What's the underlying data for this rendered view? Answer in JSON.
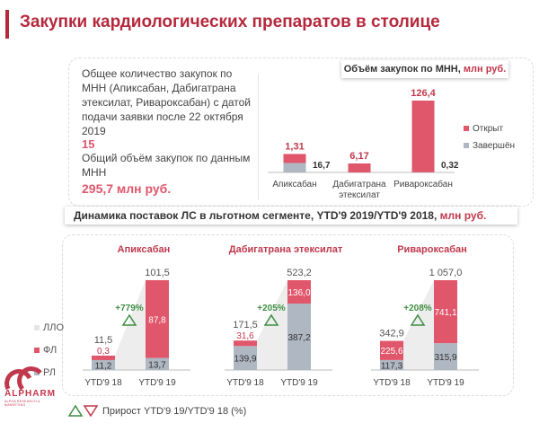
{
  "header": {
    "title": "Закупки кардиологических препаратов в столице"
  },
  "summary": {
    "text1": "Общее количество закупок по МНН (Апиксабан, Дабигатрана этексилат, Ривароксабан) с датой подачи заявки после 22 октября 2019",
    "count": "15",
    "text2": "Общий объём закупок по данным МНН",
    "total": "295,7 млн руб."
  },
  "ribbons": {
    "volume_title": "Объём закупок по МНН,",
    "volume_unit": "млн руб.",
    "dynamics_title": "Динамика поставок ЛС в льготном сегменте, YTD'9 2019/YTD'9 2018,",
    "dynamics_unit": "млн руб."
  },
  "colors": {
    "open": "#e0566b",
    "done": "#afb7c2",
    "llo": "#e6e6e6",
    "growth": "#3e8e41",
    "accent": "#b5293d"
  },
  "chart_data": [
    {
      "type": "bar",
      "stacked": true,
      "categories": [
        "Апиксабан",
        "Дабигатрана этексилат",
        "Ривароксабан"
      ],
      "series": [
        {
          "name": "Завершён",
          "values": [
            16.7,
            0,
            0.32
          ]
        },
        {
          "name": "Открыт",
          "values": [
            1.31,
            6.17,
            126.4
          ]
        }
      ],
      "data_labels": {
        "Завершён": [
          "16,7",
          "",
          "0,32"
        ],
        "Открыт": [
          "1,31",
          "6,17",
          "126,4"
        ]
      },
      "legend": [
        "Открыт",
        "Завершён"
      ],
      "legend_position": "right"
    },
    {
      "type": "bar",
      "stacked": true,
      "panels": [
        {
          "title": "Апиксабан",
          "categories": [
            "YTD'9 18",
            "YTD'9 19"
          ],
          "series": [
            {
              "name": "РЛ",
              "values": [
                11.2,
                13.7
              ]
            },
            {
              "name": "ФЛ",
              "values": [
                0.3,
                87.8
              ]
            },
            {
              "name": "ЛЛО",
              "values": [
                0,
                0
              ]
            }
          ],
          "totals": [
            11.5,
            101.5
          ],
          "labels": {
            "РЛ": [
              "11,2",
              "13,7"
            ],
            "ФЛ": [
              "0,3",
              "87,8"
            ],
            "totals": [
              "11,5",
              "101,5"
            ]
          },
          "growth": "+779%"
        },
        {
          "title": "Дабигатрана этексилат",
          "categories": [
            "YTD'9 18",
            "YTD'9 19"
          ],
          "series": [
            {
              "name": "РЛ",
              "values": [
                139.9,
                387.2
              ]
            },
            {
              "name": "ФЛ",
              "values": [
                31.6,
                136.0
              ]
            },
            {
              "name": "ЛЛО",
              "values": [
                0,
                0
              ]
            }
          ],
          "totals": [
            171.5,
            523.2
          ],
          "labels": {
            "РЛ": [
              "139,9",
              "387,2"
            ],
            "ФЛ": [
              "31,6",
              "136,0"
            ],
            "totals": [
              "171,5",
              "523,2"
            ]
          },
          "growth": "+205%"
        },
        {
          "title": "Ривароксабан",
          "categories": [
            "YTD'9 18",
            "YTD'9 19"
          ],
          "series": [
            {
              "name": "РЛ",
              "values": [
                117.3,
                315.9
              ]
            },
            {
              "name": "ФЛ",
              "values": [
                225.6,
                741.1
              ]
            },
            {
              "name": "ЛЛО",
              "values": [
                0,
                0
              ]
            }
          ],
          "totals": [
            342.9,
            1057.0
          ],
          "labels": {
            "РЛ": [
              "117,3",
              "315,9"
            ],
            "ФЛ": [
              "225,6",
              "741,1"
            ],
            "totals": [
              "342,9",
              "1 057,0"
            ]
          },
          "growth": "+208%"
        }
      ],
      "legend": [
        "ЛЛО",
        "ФЛ",
        "РЛ"
      ],
      "legend_position": "left"
    }
  ],
  "footnote": {
    "text": "Прирост  YTD'9 19/YTD'9 18 (%)"
  },
  "logo": {
    "name": "ALPHARM",
    "tagline": "ALPHA RESEARCH & MARKETING"
  }
}
